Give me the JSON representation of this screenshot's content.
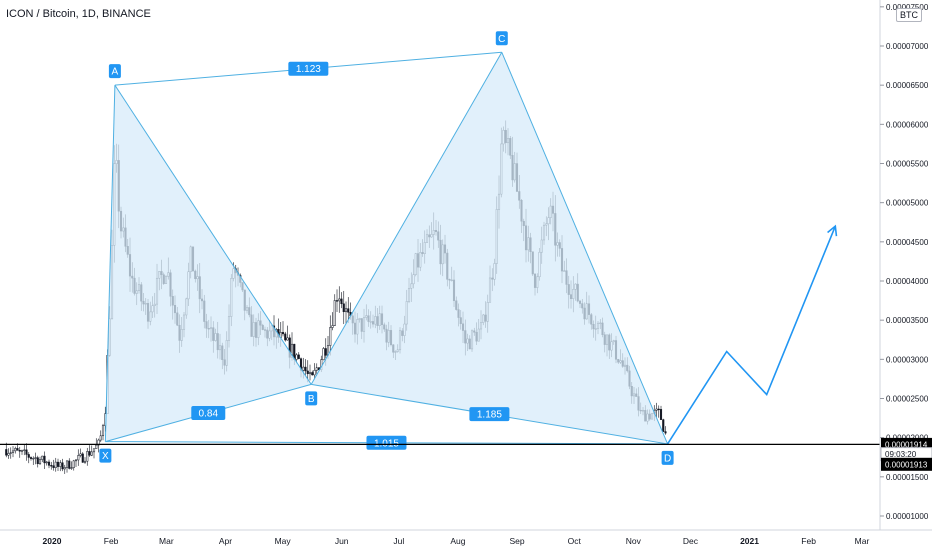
{
  "header": {
    "title": "ICON / Bitcoin, 1D, BINANCE",
    "currency_badge": "BTC"
  },
  "colors": {
    "pattern_line": "#4fb0e2",
    "pattern_fill": "#d7ebfa",
    "label_bg": "#2196f3",
    "candle": "#131722",
    "axis_text": "#131722",
    "grid": "#e0e3eb"
  },
  "chart_data": {
    "type": "candlestick",
    "y_axis": {
      "scale": "linear",
      "range": [
        8e-07,
        8.1e-06
      ],
      "ticks": [
        "0.00001000",
        "0.00001500",
        "0.00002000",
        "0.00002500",
        "0.00003000",
        "0.00003500",
        "0.00004000",
        "0.00004500",
        "0.00005000",
        "0.00005500",
        "0.00006000",
        "0.00006500",
        "0.00007000",
        "0.00007500"
      ],
      "tick_values": [
        1e-05,
        1.5e-05,
        2e-05,
        2.5e-05,
        3e-05,
        3.5e-05,
        4e-05,
        4.5e-05,
        5e-05,
        5.5e-05,
        6e-05,
        6.5e-05,
        7e-05,
        7.5e-05
      ],
      "price_badges": [
        {
          "text": "0.00001914",
          "value": 1.914e-05,
          "style": "dark"
        },
        {
          "text": "09:03:20",
          "value": 1.79e-05,
          "style": "light"
        },
        {
          "text": "0.00001913",
          "value": 1.66e-05,
          "style": "dark"
        }
      ]
    },
    "x_axis": {
      "labels": [
        {
          "text": "2020",
          "date": "2020-01-01",
          "bold": true
        },
        {
          "text": "Feb",
          "date": "2020-02-01"
        },
        {
          "text": "Mar",
          "date": "2020-03-01"
        },
        {
          "text": "Apr",
          "date": "2020-04-01"
        },
        {
          "text": "May",
          "date": "2020-05-01"
        },
        {
          "text": "Jun",
          "date": "2020-06-01"
        },
        {
          "text": "Jul",
          "date": "2020-07-01"
        },
        {
          "text": "Aug",
          "date": "2020-08-01"
        },
        {
          "text": "Sep",
          "date": "2020-09-01"
        },
        {
          "text": "Oct",
          "date": "2020-10-01"
        },
        {
          "text": "Nov",
          "date": "2020-11-01"
        },
        {
          "text": "Dec",
          "date": "2020-12-01"
        },
        {
          "text": "2021",
          "date": "2021-01-01",
          "bold": true
        },
        {
          "text": "Feb",
          "date": "2021-02-01"
        },
        {
          "text": "Mar",
          "date": "2021-03-01"
        }
      ]
    },
    "horizontal_line": {
      "value": 1.914e-05
    },
    "price_path": [
      [
        "2019-12-08",
        1.85e-05
      ],
      [
        "2019-12-18",
        1.78e-05
      ],
      [
        "2019-12-28",
        1.7e-05
      ],
      [
        "2020-01-05",
        1.62e-05
      ],
      [
        "2020-01-12",
        1.68e-05
      ],
      [
        "2020-01-19",
        1.78e-05
      ],
      [
        "2020-01-26",
        1.92e-05
      ],
      [
        "2020-01-29",
        2.4e-05
      ],
      [
        "2020-02-01",
        4e-05
      ],
      [
        "2020-02-03",
        5.6e-05
      ],
      [
        "2020-02-06",
        4.7e-05
      ],
      [
        "2020-02-12",
        4e-05
      ],
      [
        "2020-02-20",
        3.6e-05
      ],
      [
        "2020-03-01",
        4.2e-05
      ],
      [
        "2020-03-08",
        3.3e-05
      ],
      [
        "2020-03-14",
        4.3e-05
      ],
      [
        "2020-03-22",
        3.4e-05
      ],
      [
        "2020-04-01",
        3e-05
      ],
      [
        "2020-04-05",
        4.2e-05
      ],
      [
        "2020-04-14",
        3.4e-05
      ],
      [
        "2020-04-28",
        3.3e-05
      ],
      [
        "2020-05-10",
        3e-05
      ],
      [
        "2020-05-16",
        2.7e-05
      ],
      [
        "2020-05-24",
        3.2e-05
      ],
      [
        "2020-05-30",
        3.9e-05
      ],
      [
        "2020-06-06",
        3.4e-05
      ],
      [
        "2020-06-20",
        3.5e-05
      ],
      [
        "2020-06-30",
        3.1e-05
      ],
      [
        "2020-07-10",
        4.2e-05
      ],
      [
        "2020-07-20",
        4.6e-05
      ],
      [
        "2020-07-28",
        4e-05
      ],
      [
        "2020-08-05",
        3.2e-05
      ],
      [
        "2020-08-14",
        3.4e-05
      ],
      [
        "2020-08-20",
        4.3e-05
      ],
      [
        "2020-08-24",
        5.8e-05
      ],
      [
        "2020-08-29",
        5.5e-05
      ],
      [
        "2020-09-04",
        4.8e-05
      ],
      [
        "2020-09-10",
        4e-05
      ],
      [
        "2020-09-18",
        4.9e-05
      ],
      [
        "2020-09-25",
        4.1e-05
      ],
      [
        "2020-10-05",
        3.7e-05
      ],
      [
        "2020-10-15",
        3.4e-05
      ],
      [
        "2020-10-25",
        3e-05
      ],
      [
        "2020-11-05",
        2.3e-05
      ],
      [
        "2020-11-15",
        2.3e-05
      ],
      [
        "2020-11-19",
        1.95e-05
      ]
    ],
    "harmonic_pattern": {
      "points": [
        {
          "label": "X",
          "date": "2020-01-29",
          "value": 1.95e-05
        },
        {
          "label": "A",
          "date": "2020-02-03",
          "value": 6.5e-05
        },
        {
          "label": "B",
          "date": "2020-05-16",
          "value": 2.68e-05
        },
        {
          "label": "C",
          "date": "2020-08-24",
          "value": 6.92e-05
        },
        {
          "label": "D",
          "date": "2020-11-19",
          "value": 1.92e-05
        }
      ],
      "ratios": [
        {
          "text": "1.123",
          "from": "A",
          "to": "C"
        },
        {
          "text": "0.84",
          "from": "X",
          "to": "B"
        },
        {
          "text": "1.185",
          "from": "B",
          "to": "D"
        },
        {
          "text": "1.015",
          "from": "X",
          "to": "D"
        }
      ]
    },
    "projection": [
      [
        "2020-11-19",
        1.92e-05
      ],
      [
        "2020-12-20",
        3.1e-05
      ],
      [
        "2021-01-10",
        2.55e-05
      ],
      [
        "2021-02-15",
        4.7e-05
      ]
    ]
  }
}
